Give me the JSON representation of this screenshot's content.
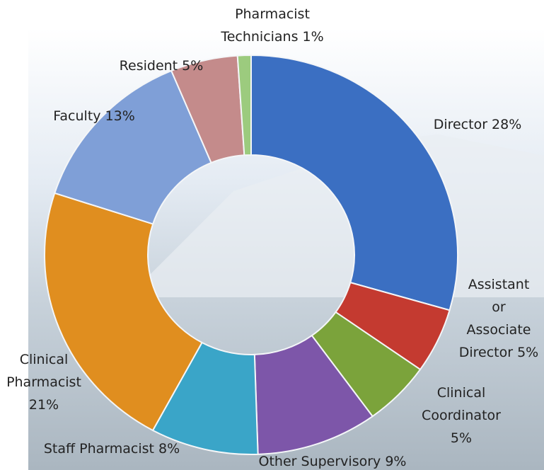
{
  "chart_data": {
    "type": "donut",
    "values": [
      28,
      5,
      5,
      9,
      8,
      21,
      13,
      5,
      1
    ],
    "value_labels": [
      "Director 28%",
      "Assistant\nor\nAssociate\nDirector 5%",
      "Clinical\nCoordinator\n5%",
      "Other Supervisory 9%",
      "Staff Pharmacist 8%",
      "Clinical\nPharmacist\n21%",
      "Faculty 13%",
      "Resident 5%",
      "Pharmacist\nTechnicians 1%"
    ],
    "colors": [
      "#3b6fc2",
      "#c43a30",
      "#7ba33b",
      "#7d56a9",
      "#3aa5c8",
      "#e08e1f",
      "#7f9fd7",
      "#c48b8b",
      "#9ccb7e"
    ]
  }
}
